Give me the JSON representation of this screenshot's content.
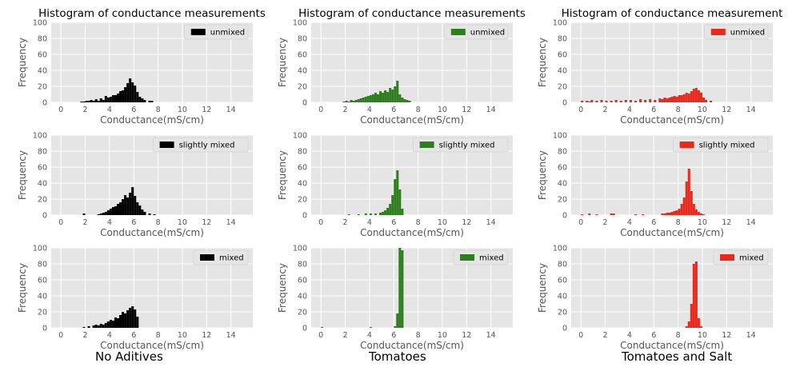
{
  "columns": [
    {
      "title": "Histogram of conductance measurements",
      "caption": "No Aditives",
      "color": "#000000"
    },
    {
      "title": "Histogram of conductance measurements",
      "caption": "Tomatoes",
      "color": "#2e7d1f"
    },
    {
      "title": "Histogram of conductance measurement",
      "caption": "Tomatoes and Salt",
      "color": "#e8291c"
    }
  ],
  "chart_data": [
    {
      "type": "bar",
      "title": "Histogram of conductance measurements",
      "legend": "unmixed",
      "xlabel": "Conductance(mS/cm)",
      "ylabel": "Frequency",
      "xlim": [
        -0.8,
        15.8
      ],
      "ylim": [
        0,
        100
      ],
      "xticks": [
        0,
        2,
        4,
        6,
        8,
        10,
        12,
        14
      ],
      "yticks": [
        0,
        20,
        40,
        60,
        80,
        100
      ],
      "bin_width": 0.2,
      "x": [
        1.6,
        1.8,
        2.0,
        2.2,
        2.4,
        2.6,
        2.8,
        3.0,
        3.2,
        3.4,
        3.6,
        3.8,
        4.0,
        4.2,
        4.4,
        4.6,
        4.8,
        5.0,
        5.2,
        5.4,
        5.6,
        5.8,
        6.0,
        6.2,
        6.4,
        6.6,
        6.8,
        7.2,
        7.4
      ],
      "values": [
        1,
        1,
        2,
        2,
        3,
        2,
        4,
        2,
        5,
        3,
        8,
        6,
        7,
        9,
        9,
        11,
        14,
        15,
        19,
        24,
        30,
        25,
        21,
        13,
        7,
        5,
        3,
        2,
        2
      ]
    },
    {
      "type": "bar",
      "title": "Histogram of conductance measurements",
      "legend": "unmixed",
      "xlabel": "Conductance(mS/cm)",
      "ylabel": "Frequency",
      "xlim": [
        -0.8,
        15.8
      ],
      "ylim": [
        0,
        100
      ],
      "xticks": [
        0,
        2,
        4,
        6,
        8,
        10,
        12,
        14
      ],
      "yticks": [
        0,
        20,
        40,
        60,
        80,
        100
      ],
      "bin_width": 0.2,
      "x": [
        1.8,
        2.0,
        2.2,
        2.4,
        2.6,
        2.8,
        3.0,
        3.2,
        3.4,
        3.6,
        3.8,
        4.0,
        4.2,
        4.4,
        4.6,
        4.8,
        5.0,
        5.2,
        5.4,
        5.6,
        5.8,
        6.0,
        6.2,
        6.4,
        6.6,
        6.8,
        7.0,
        7.2
      ],
      "values": [
        1,
        2,
        1,
        3,
        2,
        3,
        4,
        5,
        6,
        7,
        8,
        9,
        10,
        12,
        10,
        14,
        12,
        15,
        13,
        18,
        16,
        20,
        27,
        10,
        6,
        4,
        3,
        2
      ]
    },
    {
      "type": "bar",
      "title": "Histogram of conductance measurement",
      "legend": "unmixed",
      "xlabel": "Conductance(mS/cm)",
      "ylabel": "Frequency",
      "xlim": [
        -0.8,
        15.8
      ],
      "ylim": [
        0,
        100
      ],
      "xticks": [
        0,
        2,
        4,
        6,
        8,
        10,
        12,
        14
      ],
      "yticks": [
        0,
        20,
        40,
        60,
        80,
        100
      ],
      "bin_width": 0.2,
      "x": [
        0.0,
        0.4,
        0.6,
        0.8,
        1.2,
        1.6,
        2.0,
        2.4,
        2.8,
        3.2,
        3.6,
        4.0,
        4.4,
        4.8,
        5.2,
        5.6,
        6.0,
        6.4,
        6.6,
        6.8,
        7.0,
        7.2,
        7.4,
        7.6,
        7.8,
        8.0,
        8.2,
        8.4,
        8.6,
        8.8,
        9.0,
        9.2,
        9.4,
        9.6,
        9.8,
        10.0,
        10.2,
        10.6
      ],
      "values": [
        2,
        2,
        1,
        3,
        2,
        3,
        2,
        2,
        3,
        2,
        3,
        3,
        2,
        4,
        3,
        4,
        3,
        5,
        4,
        6,
        5,
        6,
        7,
        8,
        7,
        9,
        9,
        10,
        12,
        11,
        14,
        17,
        18,
        15,
        12,
        6,
        3,
        2
      ]
    },
    {
      "type": "bar",
      "title": "",
      "legend": "slightly mixed",
      "xlabel": "Conductance(mS/cm)",
      "ylabel": "Frequency",
      "xlim": [
        -0.8,
        15.8
      ],
      "ylim": [
        0,
        100
      ],
      "xticks": [
        0,
        2,
        4,
        6,
        8,
        10,
        12,
        14
      ],
      "yticks": [
        0,
        20,
        40,
        60,
        80,
        100
      ],
      "bin_width": 0.2,
      "x": [
        1.8,
        3.0,
        3.2,
        3.4,
        3.6,
        3.8,
        4.0,
        4.2,
        4.4,
        4.6,
        4.8,
        5.0,
        5.2,
        5.4,
        5.6,
        5.8,
        6.0,
        6.2,
        6.4,
        6.6,
        6.8,
        7.2,
        7.6
      ],
      "values": [
        2,
        1,
        2,
        3,
        4,
        6,
        8,
        10,
        11,
        14,
        16,
        20,
        25,
        22,
        28,
        35,
        24,
        16,
        12,
        7,
        4,
        2,
        1
      ]
    },
    {
      "type": "bar",
      "title": "",
      "legend": "slightly mixed",
      "xlabel": "Conductance(mS/cm)",
      "ylabel": "Frequency",
      "xlim": [
        -0.8,
        15.8
      ],
      "ylim": [
        0,
        100
      ],
      "xticks": [
        0,
        2,
        4,
        6,
        8,
        10,
        12,
        14
      ],
      "yticks": [
        0,
        20,
        40,
        60,
        80,
        100
      ],
      "bin_width": 0.2,
      "x": [
        2.2,
        3.0,
        3.6,
        4.0,
        4.4,
        4.8,
        5.0,
        5.2,
        5.4,
        5.6,
        5.8,
        6.0,
        6.2,
        6.4,
        6.6
      ],
      "values": [
        1,
        1,
        2,
        2,
        2,
        3,
        4,
        6,
        9,
        14,
        25,
        45,
        56,
        32,
        8
      ]
    },
    {
      "type": "bar",
      "title": "",
      "legend": "slightly mixed",
      "xlabel": "Conductance(mS/cm)",
      "ylabel": "Frequency",
      "xlim": [
        -0.8,
        15.8
      ],
      "ylim": [
        0,
        100
      ],
      "xticks": [
        0,
        2,
        4,
        6,
        8,
        10,
        12,
        14
      ],
      "yticks": [
        0,
        20,
        40,
        60,
        80,
        100
      ],
      "bin_width": 0.2,
      "x": [
        0.0,
        0.6,
        1.2,
        2.4,
        2.6,
        4.4,
        5.0,
        6.6,
        6.8,
        7.0,
        7.2,
        7.4,
        7.6,
        7.8,
        8.0,
        8.2,
        8.4,
        8.6,
        8.8,
        9.0,
        9.2,
        9.4,
        9.6,
        9.8,
        10.0
      ],
      "values": [
        1,
        2,
        1,
        2,
        2,
        1,
        1,
        2,
        2,
        3,
        3,
        4,
        5,
        6,
        8,
        14,
        22,
        42,
        58,
        30,
        14,
        7,
        4,
        2,
        1
      ]
    },
    {
      "type": "bar",
      "title": "",
      "legend": "mixed",
      "xlabel": "Conductance(mS/cm)",
      "ylabel": "Frequency",
      "xlim": [
        -0.8,
        15.8
      ],
      "ylim": [
        0,
        100
      ],
      "xticks": [
        0,
        2,
        4,
        6,
        8,
        10,
        12,
        14
      ],
      "yticks": [
        0,
        20,
        40,
        60,
        80,
        100
      ],
      "bin_width": 0.2,
      "x": [
        1.8,
        2.2,
        2.6,
        2.8,
        3.0,
        3.2,
        3.4,
        3.6,
        3.8,
        4.0,
        4.2,
        4.4,
        4.6,
        4.8,
        5.0,
        5.2,
        5.4,
        5.6,
        5.8,
        6.0,
        6.2
      ],
      "values": [
        1,
        2,
        3,
        4,
        3,
        5,
        4,
        6,
        8,
        10,
        9,
        13,
        12,
        16,
        20,
        18,
        22,
        25,
        27,
        23,
        14
      ]
    },
    {
      "type": "bar",
      "title": "",
      "legend": "mixed",
      "xlabel": "Conductance(mS/cm)",
      "ylabel": "Frequency",
      "xlim": [
        -0.8,
        15.8
      ],
      "ylim": [
        0,
        100
      ],
      "xticks": [
        0,
        2,
        4,
        6,
        8,
        10,
        12,
        14
      ],
      "yticks": [
        0,
        20,
        40,
        60,
        80,
        100
      ],
      "bin_width": 0.2,
      "x": [
        0.0,
        4.0,
        6.0,
        6.2,
        6.4,
        6.6
      ],
      "values": [
        1,
        1,
        2,
        18,
        100,
        97
      ]
    },
    {
      "type": "bar",
      "title": "",
      "legend": "mixed",
      "xlabel": "Conductance(mS/cm)",
      "ylabel": "Frequency",
      "xlim": [
        -0.8,
        15.8
      ],
      "ylim": [
        0,
        100
      ],
      "xticks": [
        0,
        2,
        4,
        6,
        8,
        10,
        12,
        14
      ],
      "yticks": [
        0,
        20,
        40,
        60,
        80,
        100
      ],
      "bin_width": 0.2,
      "x": [
        8.6,
        8.8,
        9.0,
        9.2,
        9.4,
        9.6,
        9.8
      ],
      "values": [
        2,
        8,
        30,
        80,
        83,
        12,
        2
      ]
    }
  ]
}
